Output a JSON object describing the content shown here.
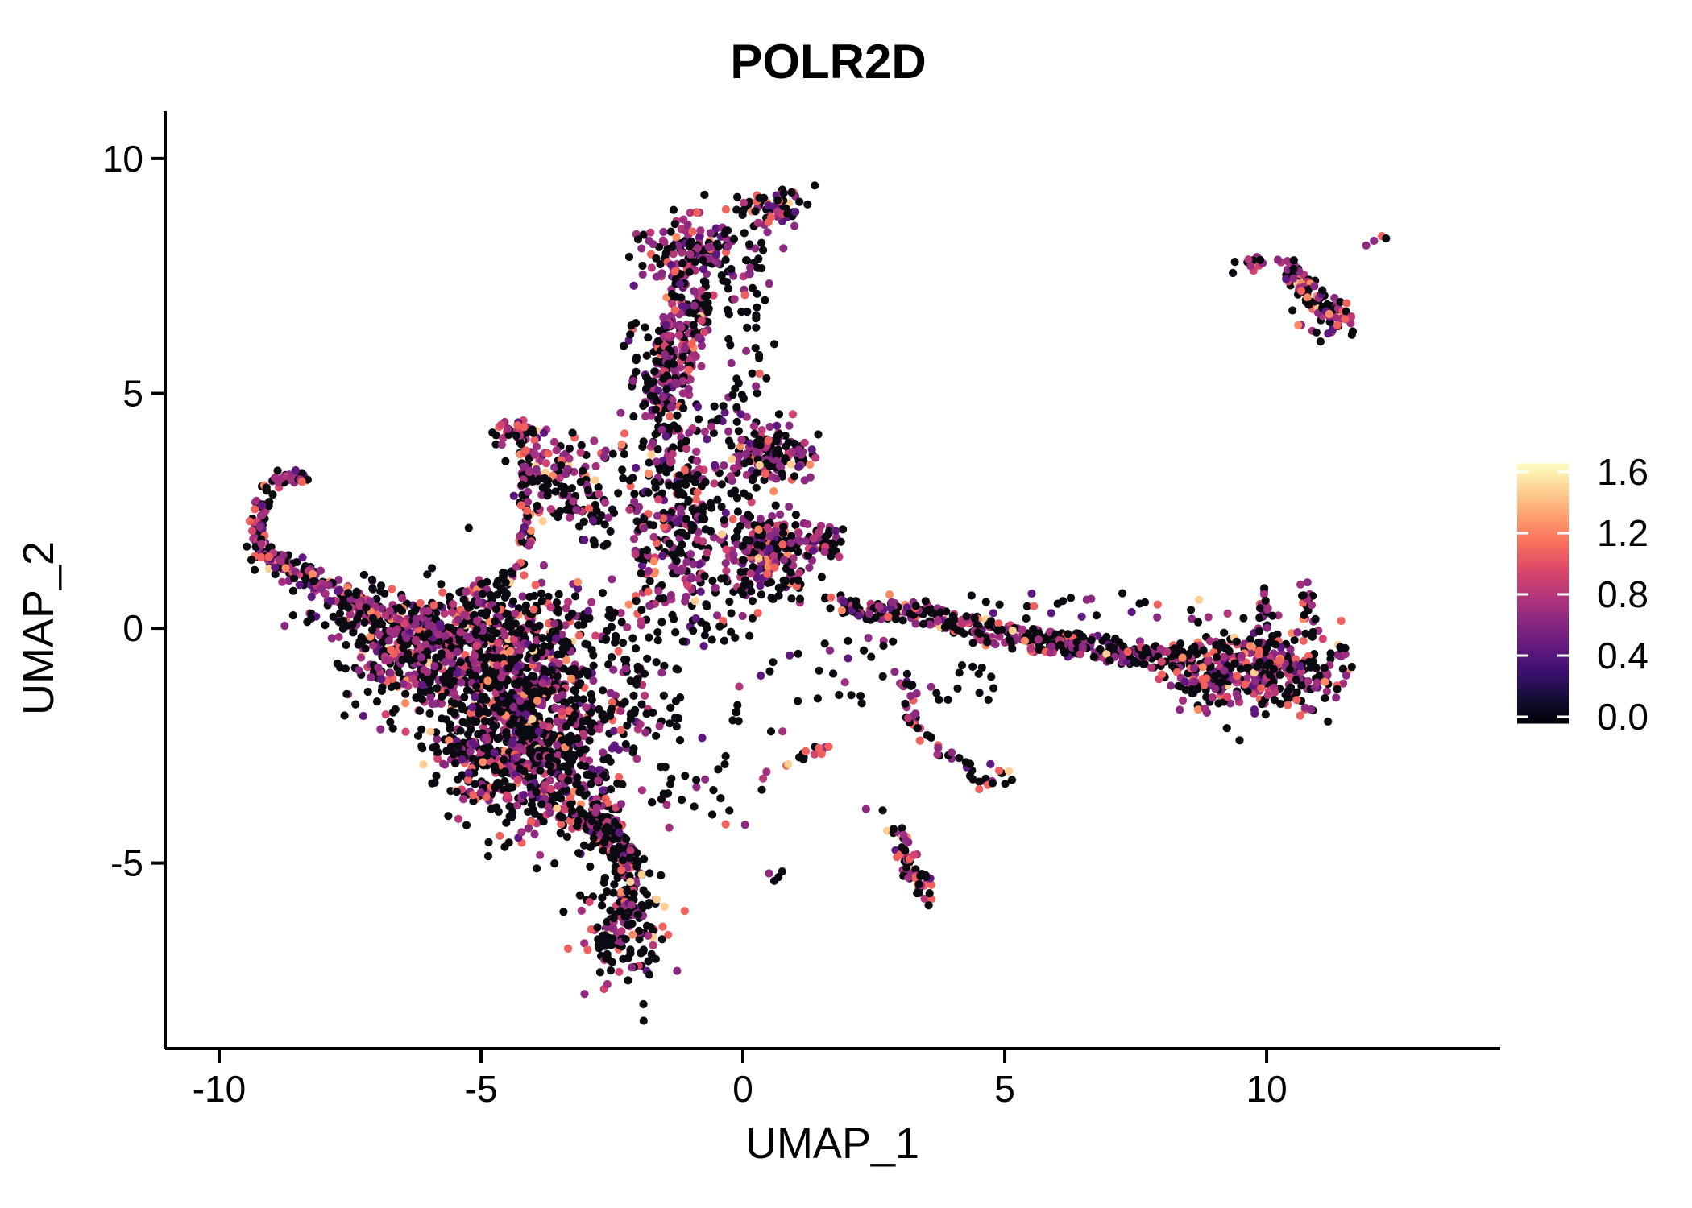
{
  "chart_data": {
    "type": "scatter",
    "title": "POLR2D",
    "xlabel": "UMAP_1",
    "ylabel": "UMAP_2",
    "xlim": [
      -11.03,
      14.46
    ],
    "ylim": [
      -8.95,
      11.01
    ],
    "x_ticks": [
      -10,
      -5,
      0,
      5,
      10
    ],
    "y_ticks": [
      10,
      5,
      0,
      -5
    ],
    "grid": false,
    "point_radius": 5.1,
    "axis_color": "#000000",
    "seed": 42,
    "palette": [
      "#0b0a10",
      "#5f187f",
      "#8c2981",
      "#a3307e",
      "#b73779",
      "#d3436e",
      "#f0605d",
      "#fc8a62",
      "#fdce93"
    ],
    "mixes": {
      "default": [
        56,
        6,
        13,
        9,
        5,
        3,
        5,
        2,
        1
      ],
      "rich": [
        40,
        7,
        17,
        12,
        8,
        4,
        7,
        3,
        2
      ],
      "dark": [
        76,
        6,
        9,
        5,
        2,
        0,
        2,
        0,
        0
      ],
      "salmon": [
        36,
        5,
        12,
        10,
        7,
        5,
        16,
        5,
        4
      ]
    },
    "legend": {
      "tick_labels": [
        "1.6",
        "1.2",
        "0.8",
        "0.4",
        "0.0"
      ],
      "tick_values": [
        1.6,
        1.2,
        0.8,
        0.4,
        0.0
      ],
      "vmin": 0.0,
      "vmax": 1.6,
      "gradient": [
        "#000004",
        "#140e36",
        "#3b0f70",
        "#641a80",
        "#8c2981",
        "#b73779",
        "#de4968",
        "#f7705c",
        "#fe9f6d",
        "#fecf92",
        "#fcfdbf"
      ]
    },
    "clusters": [
      {
        "id": "main-blob-upper-left",
        "type": "gauss",
        "cx": -5.3,
        "cy": -0.6,
        "sx": 1.05,
        "sy": 0.7,
        "n": 480,
        "mix": "default"
      },
      {
        "id": "main-blob-core",
        "type": "gauss",
        "cx": -4.0,
        "cy": -1.6,
        "sx": 0.95,
        "sy": 0.85,
        "n": 500,
        "mix": "default"
      },
      {
        "id": "main-blob-lower",
        "type": "gauss",
        "cx": -4.6,
        "cy": -2.7,
        "sx": 0.7,
        "sy": 0.75,
        "n": 330,
        "mix": "default"
      },
      {
        "id": "main-blob-lower-right",
        "type": "gauss",
        "cx": -3.3,
        "cy": -3.4,
        "sx": 0.55,
        "sy": 0.65,
        "n": 210,
        "mix": "default"
      },
      {
        "id": "main-blob-left-ext",
        "type": "gauss",
        "cx": -6.4,
        "cy": -0.45,
        "sx": 0.6,
        "sy": 0.45,
        "n": 140,
        "mix": "default"
      },
      {
        "id": "main-blob-top-band",
        "type": "gauss",
        "cx": -4.6,
        "cy": 0.15,
        "sx": 1.3,
        "sy": 0.4,
        "n": 190,
        "mix": "default"
      },
      {
        "id": "blob-bottom-taper",
        "type": "line",
        "x1": -3.0,
        "y1": -3.9,
        "x2": -2.3,
        "y2": -4.9,
        "jx": 0.3,
        "jy": 0.25,
        "n": 70,
        "mix": "default"
      },
      {
        "id": "left-band",
        "type": "line",
        "x1": -8.75,
        "y1": 1.25,
        "x2": -6.1,
        "y2": -0.15,
        "jx": 0.25,
        "jy": 0.28,
        "n": 150,
        "mix": "rich"
      },
      {
        "id": "left-hook",
        "type": "path",
        "pts": [
          [
            -8.35,
            3.2
          ],
          [
            -8.7,
            3.28
          ],
          [
            -9.0,
            3.05
          ],
          [
            -9.18,
            2.7
          ],
          [
            -9.28,
            2.25
          ],
          [
            -9.25,
            1.85
          ],
          [
            -9.05,
            1.55
          ],
          [
            -8.75,
            1.35
          ]
        ],
        "j": 0.14,
        "n": 110,
        "mix": "rich"
      },
      {
        "id": "hook-knot",
        "type": "gauss",
        "cx": -9.0,
        "cy": 1.55,
        "sx": 0.22,
        "sy": 0.18,
        "n": 40,
        "mix": "rich"
      },
      {
        "id": "left-sparse",
        "type": "uniform",
        "x1": -8.6,
        "y1": 0.0,
        "x2": -6.8,
        "y2": 1.2,
        "n": 30,
        "mix": "dark"
      },
      {
        "id": "tri-apex",
        "type": "gauss",
        "cx": -4.25,
        "cy": 4.15,
        "sx": 0.26,
        "sy": 0.18,
        "n": 45,
        "mix": "rich"
      },
      {
        "id": "tri-left-edge",
        "type": "line",
        "x1": -4.15,
        "y1": 3.95,
        "x2": -4.15,
        "y2": 1.5,
        "jx": 0.12,
        "jy": 0.1,
        "n": 60,
        "mix": "rich"
      },
      {
        "id": "tri-tail",
        "type": "line",
        "x1": -4.2,
        "y1": 1.45,
        "x2": -4.7,
        "y2": 0.85,
        "jx": 0.12,
        "jy": 0.1,
        "n": 22,
        "mix": "rich"
      },
      {
        "id": "tri-wing-upper",
        "type": "gauss",
        "cx": -3.55,
        "cy": 3.55,
        "sx": 0.38,
        "sy": 0.3,
        "n": 65,
        "mix": "rich"
      },
      {
        "id": "tri-wing-lower",
        "type": "uniform",
        "x1": -3.95,
        "y1": 2.35,
        "x2": -2.65,
        "y2": 3.2,
        "n": 48,
        "mix": "default"
      },
      {
        "id": "tri-right-sparse",
        "type": "uniform",
        "x1": -3.2,
        "y1": 1.7,
        "x2": -2.4,
        "y2": 2.6,
        "n": 22,
        "mix": "dark"
      },
      {
        "id": "mid-column-lower",
        "type": "uniform",
        "x1": -2.1,
        "y1": 0.45,
        "x2": -0.7,
        "y2": 2.6,
        "n": 130,
        "mix": "default"
      },
      {
        "id": "mid-column-upper",
        "type": "gauss",
        "cx": -1.5,
        "cy": 3.4,
        "sx": 0.55,
        "sy": 0.75,
        "n": 150,
        "mix": "default"
      },
      {
        "id": "mid-scatter",
        "type": "uniform",
        "x1": -2.6,
        "y1": -0.4,
        "x2": 0.3,
        "y2": 0.5,
        "n": 45,
        "mix": "dark"
      },
      {
        "id": "col-band",
        "type": "line",
        "x1": -1.55,
        "y1": 4.6,
        "x2": -0.95,
        "y2": 7.2,
        "jx": 0.42,
        "jy": 0.3,
        "n": 230,
        "mix": "rich"
      },
      {
        "id": "col-top-blob",
        "type": "gauss",
        "cx": -0.95,
        "cy": 8.0,
        "sx": 0.5,
        "sy": 0.42,
        "n": 170,
        "mix": "rich"
      },
      {
        "id": "top-knot",
        "type": "gauss",
        "cx": 0.55,
        "cy": 8.95,
        "sx": 0.3,
        "sy": 0.22,
        "n": 60,
        "mix": "rich"
      },
      {
        "id": "top-knot-tip",
        "type": "points",
        "pts": [
          [
            1.0,
            9.2,
            2
          ],
          [
            1.08,
            9.08,
            0
          ],
          [
            0.93,
            9.28,
            0
          ]
        ]
      },
      {
        "id": "col-right-sparse",
        "type": "uniform",
        "x1": -0.35,
        "y1": 5.0,
        "x2": 0.45,
        "y2": 8.3,
        "n": 40,
        "mix": "dark"
      },
      {
        "id": "col-left-sparse",
        "type": "uniform",
        "x1": -2.3,
        "y1": 4.6,
        "x2": -1.6,
        "y2": 6.5,
        "n": 25,
        "mix": "dark"
      },
      {
        "id": "gap-upper",
        "type": "uniform",
        "x1": -0.9,
        "y1": 4.1,
        "x2": 0.1,
        "y2": 5.0,
        "n": 18,
        "mix": "dark"
      },
      {
        "id": "cluster-mid-upper",
        "type": "gauss",
        "cx": 0.35,
        "cy": 3.75,
        "sx": 0.3,
        "sy": 0.33,
        "n": 110,
        "mix": "rich"
      },
      {
        "id": "cluster-mid-upper-ext",
        "type": "gauss",
        "cx": 1.0,
        "cy": 3.7,
        "sx": 0.22,
        "sy": 0.3,
        "n": 45,
        "mix": "rich"
      },
      {
        "id": "wedge",
        "type": "gauss",
        "cx": 0.55,
        "cy": 1.7,
        "sx": 0.5,
        "sy": 0.36,
        "n": 200,
        "mix": "rich"
      },
      {
        "id": "wedge-tip",
        "type": "gauss",
        "cx": 1.5,
        "cy": 1.85,
        "sx": 0.22,
        "sy": 0.18,
        "n": 40,
        "mix": "rich"
      },
      {
        "id": "wedge-fringe",
        "type": "uniform",
        "x1": -0.6,
        "y1": 0.5,
        "x2": 1.1,
        "y2": 1.2,
        "n": 45,
        "mix": "dark"
      },
      {
        "id": "gap-scatter",
        "type": "uniform",
        "x1": -1.3,
        "y1": 2.3,
        "x2": 0.2,
        "y2": 3.3,
        "n": 40,
        "mix": "dark"
      },
      {
        "id": "band-start",
        "type": "line",
        "x1": 1.6,
        "y1": 0.55,
        "x2": 2.7,
        "y2": 0.3,
        "jx": 0.18,
        "jy": 0.18,
        "n": 45,
        "mix": "default"
      },
      {
        "id": "band-mid1",
        "type": "line",
        "x1": 2.7,
        "y1": 0.45,
        "x2": 4.6,
        "y2": 0.0,
        "jx": 0.2,
        "jy": 0.2,
        "n": 120,
        "mix": "rich"
      },
      {
        "id": "band-mid2",
        "type": "line",
        "x1": 4.6,
        "y1": -0.1,
        "x2": 8.6,
        "y2": -0.7,
        "jx": 0.3,
        "jy": 0.26,
        "n": 260,
        "mix": "default"
      },
      {
        "id": "band-sparse-above",
        "type": "uniform",
        "x1": 3.2,
        "y1": 0.2,
        "x2": 8.2,
        "y2": 0.9,
        "n": 26,
        "mix": "dark"
      },
      {
        "id": "band-sparse-below",
        "type": "uniform",
        "x1": 3.0,
        "y1": -1.6,
        "x2": 5.0,
        "y2": -0.6,
        "n": 15,
        "mix": "dark"
      },
      {
        "id": "right-cluster",
        "type": "gauss",
        "cx": 9.9,
        "cy": -0.85,
        "sx": 0.8,
        "sy": 0.45,
        "n": 380,
        "mix": "rich"
      },
      {
        "id": "right-cluster-fringe",
        "type": "uniform",
        "x1": 8.3,
        "y1": -1.4,
        "x2": 9.1,
        "y2": -0.3,
        "n": 40,
        "mix": "default"
      },
      {
        "id": "right-hook1",
        "type": "line",
        "x1": 9.9,
        "y1": -0.1,
        "x2": 9.95,
        "y2": 0.85,
        "jx": 0.1,
        "jy": 0.1,
        "n": 18,
        "mix": "rich"
      },
      {
        "id": "right-hook2",
        "type": "line",
        "x1": 10.85,
        "y1": -0.2,
        "x2": 10.75,
        "y2": 1.0,
        "jx": 0.12,
        "jy": 0.1,
        "n": 22,
        "mix": "default"
      },
      {
        "id": "topright-main",
        "type": "line",
        "x1": 10.35,
        "y1": 7.75,
        "x2": 11.45,
        "y2": 6.45,
        "jx": 0.22,
        "jy": 0.18,
        "n": 95,
        "mix": "rich"
      },
      {
        "id": "topright-left",
        "type": "gauss",
        "cx": 9.75,
        "cy": 7.75,
        "sx": 0.18,
        "sy": 0.08,
        "n": 12,
        "mix": "rich"
      },
      {
        "id": "topright-pair",
        "type": "points",
        "pts": [
          [
            11.9,
            8.15,
            2
          ],
          [
            12.05,
            8.25,
            2
          ],
          [
            12.2,
            8.35,
            6
          ],
          [
            12.28,
            8.3,
            0
          ]
        ]
      },
      {
        "id": "topright-fringe",
        "type": "uniform",
        "x1": 10.4,
        "y1": 6.1,
        "x2": 11.7,
        "y2": 7.0,
        "n": 18,
        "mix": "default"
      },
      {
        "id": "bottom-arm",
        "type": "line",
        "x1": -2.6,
        "y1": -4.1,
        "x2": -2.1,
        "y2": -5.3,
        "jx": 0.22,
        "jy": 0.2,
        "n": 80,
        "mix": "default"
      },
      {
        "id": "bottom-tip",
        "type": "gauss",
        "cx": -2.3,
        "cy": -6.3,
        "sx": 0.38,
        "sy": 0.6,
        "n": 170,
        "mix": "default"
      },
      {
        "id": "small-pair",
        "type": "points",
        "pts": [
          [
            0.5,
            -5.22,
            2
          ],
          [
            0.68,
            -5.3,
            0
          ],
          [
            0.6,
            -5.38,
            0
          ],
          [
            0.75,
            -5.18,
            0
          ]
        ]
      },
      {
        "id": "lower-blob",
        "type": "line",
        "x1": 2.88,
        "y1": -4.3,
        "x2": 3.5,
        "y2": -5.75,
        "jx": 0.2,
        "jy": 0.18,
        "n": 70,
        "mix": "salmon"
      },
      {
        "id": "lower-dots",
        "type": "points",
        "pts": [
          [
            2.35,
            -3.85,
            2
          ],
          [
            2.67,
            -3.88,
            0
          ]
        ]
      },
      {
        "id": "diag-arm",
        "type": "path",
        "pts": [
          [
            3.1,
            -0.95
          ],
          [
            3.2,
            -1.5
          ],
          [
            3.25,
            -2.0
          ],
          [
            3.5,
            -2.45
          ],
          [
            3.95,
            -2.75
          ],
          [
            4.4,
            -2.95
          ]
        ],
        "j": 0.12,
        "n": 38,
        "mix": "default"
      },
      {
        "id": "diag-knot",
        "type": "gauss",
        "cx": 4.72,
        "cy": -3.2,
        "sx": 0.18,
        "sy": 0.16,
        "n": 16,
        "mix": "salmon"
      },
      {
        "id": "small-chain",
        "type": "line",
        "x1": 0.35,
        "y1": -3.1,
        "x2": 1.6,
        "y2": -2.55,
        "jx": 0.15,
        "jy": 0.12,
        "n": 14,
        "mix": "salmon"
      },
      {
        "id": "below-blob-sparse",
        "type": "uniform",
        "x1": -1.6,
        "y1": -4.3,
        "x2": 0.4,
        "y2": -2.6,
        "n": 26,
        "mix": "dark"
      },
      {
        "id": "blob-right-sparse",
        "type": "uniform",
        "x1": -2.3,
        "y1": -2.4,
        "x2": -1.2,
        "y2": -0.6,
        "n": 40,
        "mix": "dark"
      },
      {
        "id": "mid-right-sparse",
        "type": "uniform",
        "x1": 1.4,
        "y1": -1.8,
        "x2": 2.9,
        "y2": -0.2,
        "n": 20,
        "mix": "dark"
      },
      {
        "id": "below-wedge-sparse",
        "type": "uniform",
        "x1": -0.3,
        "y1": -2.2,
        "x2": 1.3,
        "y2": -0.3,
        "n": 14,
        "mix": "dark"
      },
      {
        "id": "accents",
        "type": "points",
        "pts": [
          [
            -8.42,
            3.12,
            6
          ],
          [
            -9.05,
            1.52,
            6
          ],
          [
            -3.82,
            2.28,
            8
          ],
          [
            -2.82,
            3.15,
            8
          ],
          [
            0.32,
            5.42,
            6
          ],
          [
            0.45,
            5.32,
            0
          ],
          [
            11.35,
            6.45,
            6
          ],
          [
            11.5,
            6.58,
            6
          ],
          [
            -4.3,
            4.32,
            6
          ],
          [
            -4.18,
            4.28,
            6
          ],
          [
            -2.15,
            -5.4,
            8
          ],
          [
            -2.32,
            -5.15,
            6
          ],
          [
            -0.4,
            2.0,
            8
          ],
          [
            0.3,
            2.1,
            7
          ],
          [
            5.15,
            -0.05,
            8
          ],
          [
            7.35,
            -0.5,
            6
          ],
          [
            2.8,
            0.72,
            7
          ],
          [
            -6.1,
            -2.9,
            8
          ],
          [
            -5.15,
            -3.55,
            6
          ],
          [
            -0.88,
            8.85,
            6
          ],
          [
            -1.3,
            7.6,
            6
          ],
          [
            0.25,
            6.6,
            0
          ],
          [
            0.6,
            6.05,
            0
          ],
          [
            -0.15,
            5.1,
            0
          ],
          [
            1.2,
            -2.62,
            6
          ],
          [
            1.45,
            -2.55,
            6
          ]
        ]
      }
    ]
  }
}
